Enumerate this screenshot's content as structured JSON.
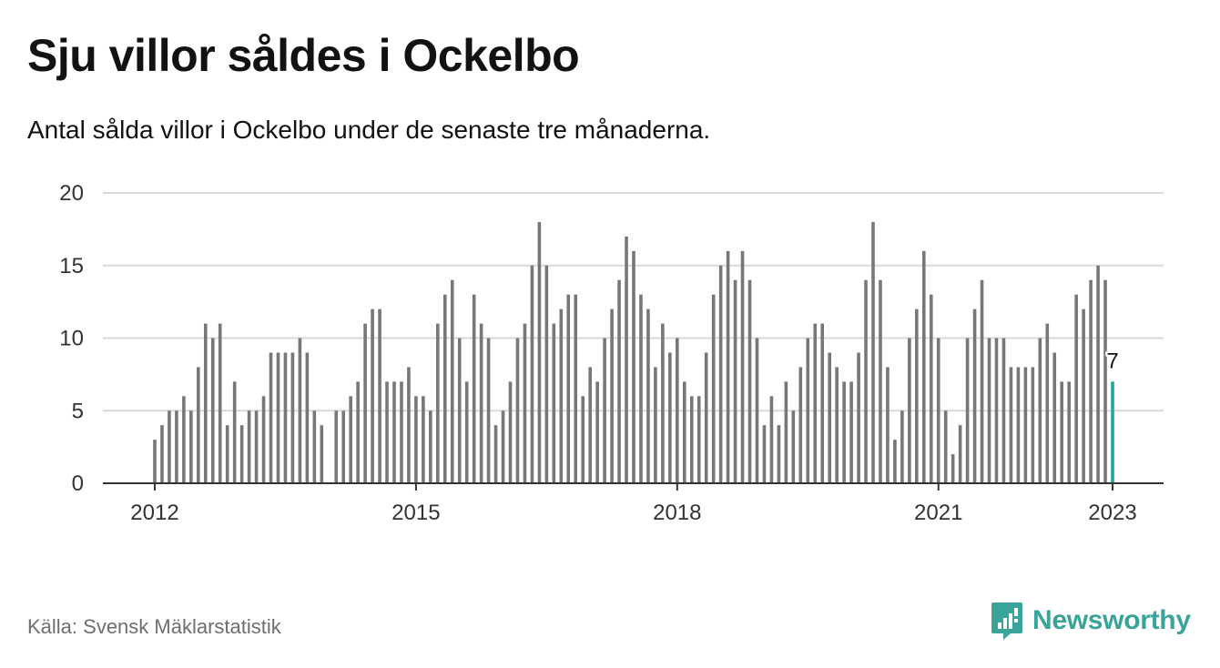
{
  "header": {
    "title": "Sju villor såldes i Ockelbo",
    "subtitle": "Antal sålda villor i Ockelbo under de senaste tre månaderna."
  },
  "footer": {
    "source": "Källa: Svensk Mäklarstatistik",
    "brand": "Newsworthy",
    "brand_icon": "newsworthy-logo-icon"
  },
  "colors": {
    "bar": "#77767b",
    "highlight": "#21a69b",
    "grid": "#d9d9d9",
    "axis": "#333333",
    "brand": "#3aa39a"
  },
  "chart_data": {
    "type": "bar",
    "title": "",
    "xlabel": "",
    "ylabel": "",
    "ylim": [
      0,
      20
    ],
    "yticks": [
      0,
      5,
      10,
      15,
      20
    ],
    "xticks": [
      {
        "label": "2012",
        "index": 0
      },
      {
        "label": "2015",
        "index": 36
      },
      {
        "label": "2018",
        "index": 72
      },
      {
        "label": "2021",
        "index": 108
      },
      {
        "label": "2023",
        "index": 132
      }
    ],
    "grid": true,
    "start_month": "2012-01",
    "end_month": "2023-01",
    "values": [
      3,
      4,
      5,
      5,
      6,
      5,
      8,
      11,
      10,
      11,
      4,
      7,
      4,
      5,
      5,
      6,
      9,
      9,
      9,
      9,
      10,
      9,
      5,
      4,
      null,
      5,
      5,
      6,
      7,
      11,
      12,
      12,
      7,
      7,
      7,
      8,
      6,
      6,
      5,
      11,
      13,
      14,
      10,
      7,
      13,
      11,
      10,
      4,
      5,
      7,
      10,
      11,
      15,
      18,
      15,
      11,
      12,
      13,
      13,
      6,
      8,
      7,
      10,
      12,
      14,
      17,
      16,
      13,
      12,
      8,
      11,
      9,
      10,
      7,
      6,
      6,
      9,
      13,
      15,
      16,
      14,
      16,
      14,
      10,
      4,
      6,
      4,
      7,
      5,
      8,
      10,
      11,
      11,
      9,
      8,
      7,
      7,
      9,
      14,
      18,
      14,
      8,
      3,
      5,
      10,
      12,
      16,
      13,
      10,
      5,
      2,
      4,
      10,
      12,
      14,
      10,
      10,
      10,
      8,
      8,
      8,
      8,
      10,
      11,
      9,
      7,
      7,
      13,
      12,
      14,
      15,
      14,
      7
    ],
    "highlight_index": 132,
    "highlight_label": "7"
  }
}
